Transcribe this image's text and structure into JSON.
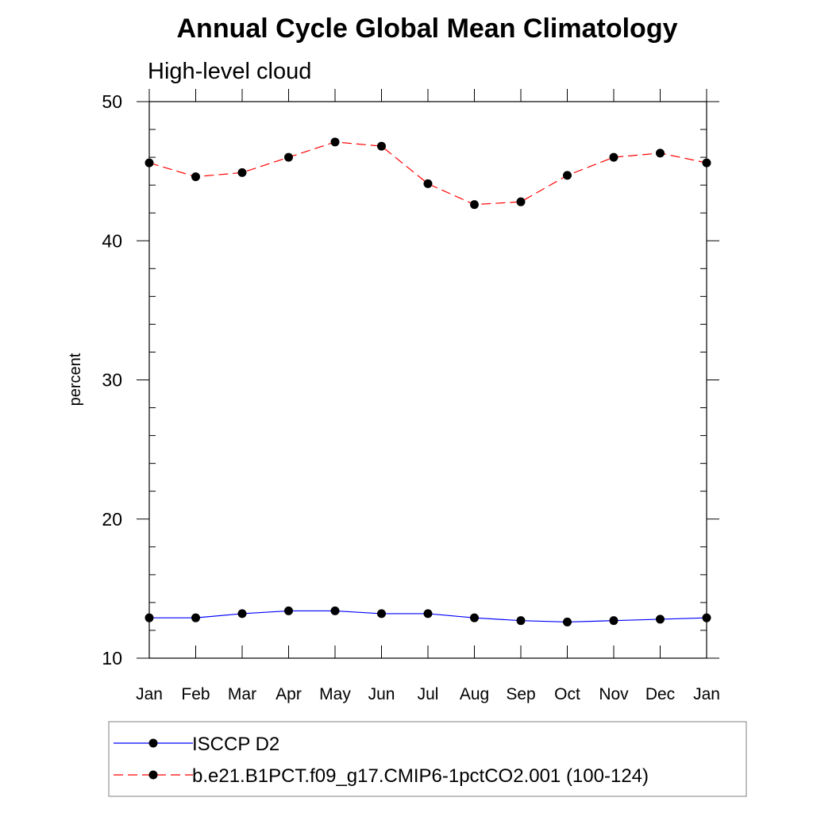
{
  "chart_data": {
    "type": "line",
    "title": "Annual Cycle Global Mean Climatology",
    "subtitle": "High-level cloud",
    "xlabel": "",
    "ylabel": "percent",
    "categories": [
      "Jan",
      "Feb",
      "Mar",
      "Apr",
      "May",
      "Jun",
      "Jul",
      "Aug",
      "Sep",
      "Oct",
      "Nov",
      "Dec",
      "Jan"
    ],
    "ylim": [
      10,
      50
    ],
    "yticks": [
      10,
      20,
      30,
      40,
      50
    ],
    "grid": false,
    "legend_position": "bottom",
    "series": [
      {
        "name": "ISCCP D2",
        "color": "#0000ff",
        "style": "solid",
        "marker": "filled-circle",
        "values": [
          12.9,
          12.9,
          13.2,
          13.4,
          13.4,
          13.2,
          13.2,
          12.9,
          12.7,
          12.6,
          12.7,
          12.8,
          12.9
        ]
      },
      {
        "name": "b.e21.B1PCT.f09_g17.CMIP6-1pctCO2.001 (100-124)",
        "color": "#ff0000",
        "style": "dashed",
        "marker": "filled-circle",
        "values": [
          45.6,
          44.6,
          44.9,
          46.0,
          47.1,
          46.8,
          44.1,
          42.6,
          42.8,
          44.7,
          46.0,
          46.3,
          45.6
        ]
      }
    ]
  }
}
